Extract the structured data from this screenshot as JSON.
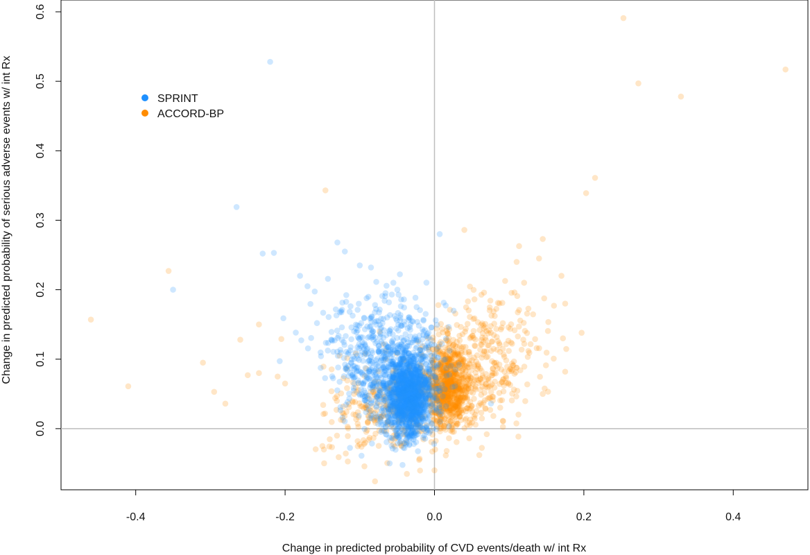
{
  "chart_data": {
    "type": "scatter",
    "xlabel": "Change in predicted probability of CVD events/death w/ int Rx",
    "ylabel": "Change in predicted probability of serious adverse events w/ int Rx",
    "xlim": [
      -0.5,
      0.5
    ],
    "ylim": [
      -0.088,
      0.617
    ],
    "x_ticks": [
      -0.4,
      -0.2,
      0.0,
      0.2,
      0.4
    ],
    "x_tick_labels": [
      "-0.4",
      "-0.2",
      "0.0",
      "0.2",
      "0.4"
    ],
    "y_ticks": [
      0.0,
      0.1,
      0.2,
      0.3,
      0.4,
      0.5,
      0.6
    ],
    "y_tick_labels": [
      "0.0",
      "0.1",
      "0.2",
      "0.3",
      "0.4",
      "0.5",
      "0.6"
    ],
    "reference_lines": {
      "x": 0,
      "y": 0,
      "color": "#bdbdbd"
    },
    "grid": false,
    "legend_position": "top-left",
    "series": [
      {
        "name": "SPRINT",
        "color": "#1e90ff",
        "outliers": [
          [
            -0.22,
            0.528
          ],
          [
            -0.265,
            0.319
          ],
          [
            -0.23,
            0.252
          ],
          [
            -0.215,
            0.253
          ],
          [
            -0.35,
            0.2
          ],
          [
            0.007,
            0.28
          ],
          [
            -0.13,
            0.268
          ],
          [
            -0.12,
            0.255
          ],
          [
            -0.085,
            0.232
          ],
          [
            -0.18,
            0.22
          ],
          [
            -0.17,
            0.205
          ],
          [
            -0.1,
            0.235
          ],
          [
            -0.055,
            0.21
          ],
          [
            -0.06,
            -0.05
          ]
        ],
        "cloud": [
          {
            "cx": -0.035,
            "cy": 0.045,
            "sx": 0.016,
            "sy": 0.03,
            "n": 1300
          },
          {
            "cx": -0.055,
            "cy": 0.09,
            "sx": 0.035,
            "sy": 0.04,
            "n": 550
          },
          {
            "cx": -0.09,
            "cy": 0.13,
            "sx": 0.04,
            "sy": 0.035,
            "n": 150
          }
        ]
      },
      {
        "name": "ACCORD-BP",
        "color": "#ff8c00",
        "outliers": [
          [
            0.253,
            0.591
          ],
          [
            0.47,
            0.517
          ],
          [
            0.273,
            0.497
          ],
          [
            0.33,
            0.478
          ],
          [
            0.215,
            0.361
          ],
          [
            0.203,
            0.339
          ],
          [
            -0.146,
            0.343
          ],
          [
            0.04,
            0.286
          ],
          [
            0.145,
            0.273
          ],
          [
            -0.356,
            0.227
          ],
          [
            -0.46,
            0.157
          ],
          [
            -0.41,
            0.061
          ],
          [
            -0.31,
            0.095
          ],
          [
            -0.295,
            0.053
          ],
          [
            -0.28,
            0.036
          ],
          [
            -0.26,
            0.128
          ],
          [
            -0.235,
            0.15
          ],
          [
            -0.235,
            0.08
          ],
          [
            -0.205,
            0.129
          ],
          [
            -0.25,
            0.077
          ],
          [
            -0.21,
            0.075
          ],
          [
            -0.2,
            0.065
          ],
          [
            0.175,
            0.18
          ],
          [
            0.17,
            0.22
          ],
          [
            0.16,
            0.177
          ],
          [
            0.172,
            0.13
          ],
          [
            0.175,
            0.082
          ],
          [
            0.145,
            0.05
          ],
          [
            0.12,
            0.21
          ],
          [
            0.11,
            0.24
          ],
          [
            0.14,
            0.245
          ],
          [
            -0.148,
            -0.03
          ],
          [
            -0.15,
            -0.025
          ],
          [
            0.0,
            -0.06
          ],
          [
            0.06,
            -0.038
          ],
          [
            0.07,
            -0.008
          ],
          [
            0.197,
            0.138
          ]
        ],
        "cloud": [
          {
            "cx": 0.018,
            "cy": 0.06,
            "sx": 0.014,
            "sy": 0.03,
            "n": 700
          },
          {
            "cx": 0.05,
            "cy": 0.08,
            "sx": 0.035,
            "sy": 0.04,
            "n": 350
          },
          {
            "cx": -0.06,
            "cy": 0.03,
            "sx": 0.04,
            "sy": 0.035,
            "n": 300
          },
          {
            "cx": 0.09,
            "cy": 0.13,
            "sx": 0.035,
            "sy": 0.04,
            "n": 90
          }
        ]
      }
    ]
  }
}
